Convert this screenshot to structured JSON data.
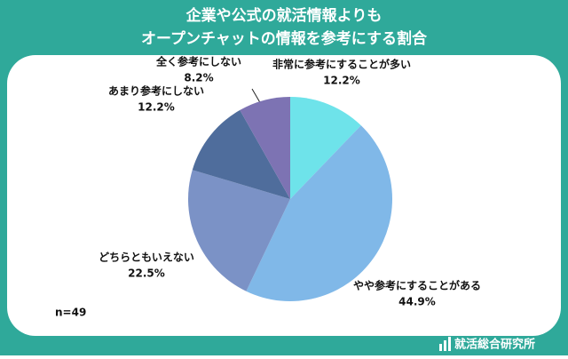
{
  "chart_data": {
    "type": "pie",
    "title_lines": [
      "企業や公式の就活情報よりも",
      "オープンチャットの情報を参考にする割合"
    ],
    "categories": [
      "非常に参考にすることが多い",
      "やや参考にすることがある",
      "どちらともいえない",
      "あまり参考にしない",
      "全く参考にしない"
    ],
    "values": [
      12.2,
      44.9,
      22.5,
      12.2,
      8.2
    ],
    "value_labels": [
      "12.2%",
      "44.9%",
      "22.5%",
      "12.2%",
      "8.2%"
    ],
    "colors": [
      "#6ee3ea",
      "#80b8e8",
      "#7b92c6",
      "#4f6d9c",
      "#7d73b3"
    ],
    "note": "n=49",
    "source": "就活総合研究所"
  }
}
